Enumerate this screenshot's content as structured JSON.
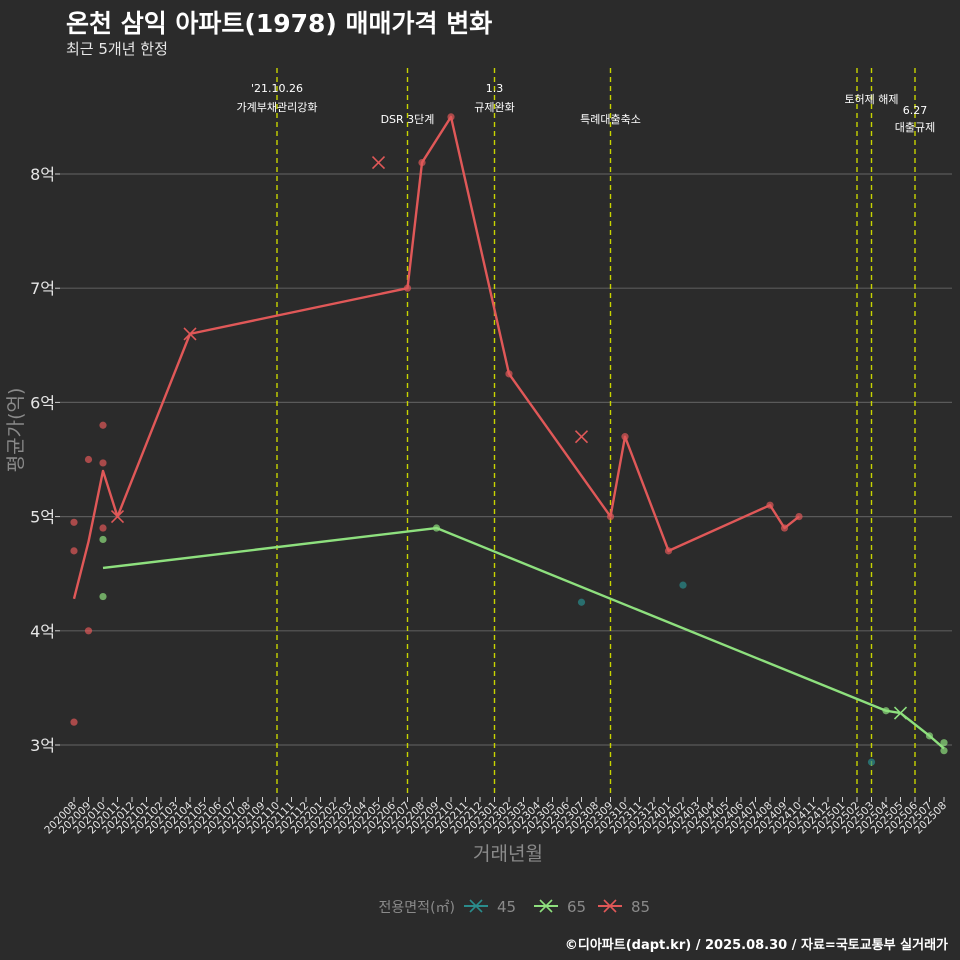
{
  "title": "온천 삼익 아파트(1978) 매매가격 변화",
  "subtitle": "최근 5개년 한정",
  "caption": "©디아파트(dapt.kr) / 2025.08.30 / 자료=국토교통부 실거래가",
  "colors": {
    "s45": "#2a8c8c",
    "s65": "#8ee07e",
    "s85": "#e05858",
    "vline": "#c8d400",
    "grid": "#5a5a5a",
    "text": "#e6e6e6",
    "axis_title": "#8a8a8a"
  },
  "chart_data": {
    "type": "line",
    "title": "온천 삼익 아파트(1978) 매매가격 변화",
    "subtitle": "최근 5개년 한정",
    "xlabel": "거래년월",
    "ylabel": "평균가(억)",
    "categories": [
      "202008",
      "202009",
      "202010",
      "202011",
      "202012",
      "202101",
      "202102",
      "202103",
      "202104",
      "202105",
      "202106",
      "202107",
      "202108",
      "202109",
      "202110",
      "202111",
      "202112",
      "202201",
      "202202",
      "202203",
      "202204",
      "202205",
      "202206",
      "202207",
      "202208",
      "202209",
      "202210",
      "202211",
      "202212",
      "202301",
      "202302",
      "202303",
      "202304",
      "202305",
      "202306",
      "202307",
      "202308",
      "202309",
      "202310",
      "202311",
      "202312",
      "202401",
      "202402",
      "202403",
      "202404",
      "202405",
      "202406",
      "202407",
      "202408",
      "202409",
      "202410",
      "202411",
      "202412",
      "202501",
      "202502",
      "202503",
      "202504",
      "202505",
      "202506",
      "202507",
      "202508"
    ],
    "y_ticks": [
      3,
      4,
      5,
      6,
      7,
      8
    ],
    "y_tick_labels": [
      "3억",
      "4억",
      "5억",
      "6억",
      "7억",
      "8억"
    ],
    "ylim": [
      2.6,
      9.05
    ],
    "legend": {
      "title": "전용면적(㎡)",
      "position": "bottom",
      "entries": [
        "45",
        "65",
        "85"
      ]
    },
    "series": [
      {
        "name": "45",
        "line": [],
        "points": [
          [
            "202307",
            4.25
          ],
          [
            "202402",
            4.4
          ],
          [
            "202503",
            2.85
          ]
        ],
        "cross_points": []
      },
      {
        "name": "65",
        "line": [
          [
            "202010",
            4.55
          ],
          [
            "202209",
            4.9
          ],
          [
            "202504",
            3.3
          ],
          [
            "202505",
            3.28
          ],
          [
            "202507",
            3.08
          ],
          [
            "202508",
            2.97
          ]
        ],
        "points": [
          [
            "202010",
            4.8
          ],
          [
            "202010",
            4.3
          ],
          [
            "202209",
            4.9
          ],
          [
            "202504",
            3.3
          ],
          [
            "202507",
            3.08
          ],
          [
            "202508",
            3.02
          ],
          [
            "202508",
            2.95
          ]
        ],
        "cross_points": [
          [
            "202505",
            3.28
          ]
        ]
      },
      {
        "name": "85",
        "line": [
          [
            "202008",
            4.28
          ],
          [
            "202009",
            4.78
          ],
          [
            "202010",
            5.4
          ],
          [
            "202011",
            5.0
          ],
          [
            "202104",
            6.6
          ],
          [
            "202207",
            7.0
          ],
          [
            "202208",
            8.1
          ],
          [
            "202210",
            8.5
          ],
          [
            "202302",
            6.25
          ],
          [
            "202309",
            5.0
          ],
          [
            "202310",
            5.7
          ],
          [
            "202401",
            4.7
          ],
          [
            "202408",
            5.1
          ],
          [
            "202409",
            4.9
          ],
          [
            "202410",
            5.0
          ]
        ],
        "points": [
          [
            "202008",
            4.95
          ],
          [
            "202008",
            4.7
          ],
          [
            "202008",
            3.2
          ],
          [
            "202009",
            5.5
          ],
          [
            "202009",
            4.0
          ],
          [
            "202010",
            5.8
          ],
          [
            "202010",
            5.47
          ],
          [
            "202010",
            4.9
          ],
          [
            "202207",
            7.0
          ],
          [
            "202208",
            8.1
          ],
          [
            "202210",
            8.5
          ],
          [
            "202302",
            6.25
          ],
          [
            "202309",
            5.0
          ],
          [
            "202310",
            5.7
          ],
          [
            "202401",
            4.7
          ],
          [
            "202408",
            5.1
          ],
          [
            "202409",
            4.9
          ],
          [
            "202410",
            5.0
          ]
        ],
        "cross_points": [
          [
            "202011",
            5.0
          ],
          [
            "202104",
            6.6
          ],
          [
            "202205",
            8.1
          ],
          [
            "202307",
            5.7
          ]
        ]
      }
    ],
    "annotations": [
      {
        "x": "202110",
        "lines": [
          "'21.10.26",
          "가계부채관리강화"
        ],
        "row": "top"
      },
      {
        "x": "202207",
        "lines": [
          "DSR 3단계"
        ],
        "row": "lower"
      },
      {
        "x": "202301",
        "lines": [
          "1.3",
          "규제완화"
        ],
        "row": "top"
      },
      {
        "x": "202309",
        "lines": [
          "특례대출축소"
        ],
        "row": "lower"
      },
      {
        "x": "202502",
        "lines": [],
        "row": "none"
      },
      {
        "x": "202503",
        "lines": [
          "토허제 해제"
        ],
        "row": "mid"
      },
      {
        "x": "202506",
        "lines": [
          "6.27",
          "대출규제"
        ],
        "row": "right"
      }
    ]
  }
}
